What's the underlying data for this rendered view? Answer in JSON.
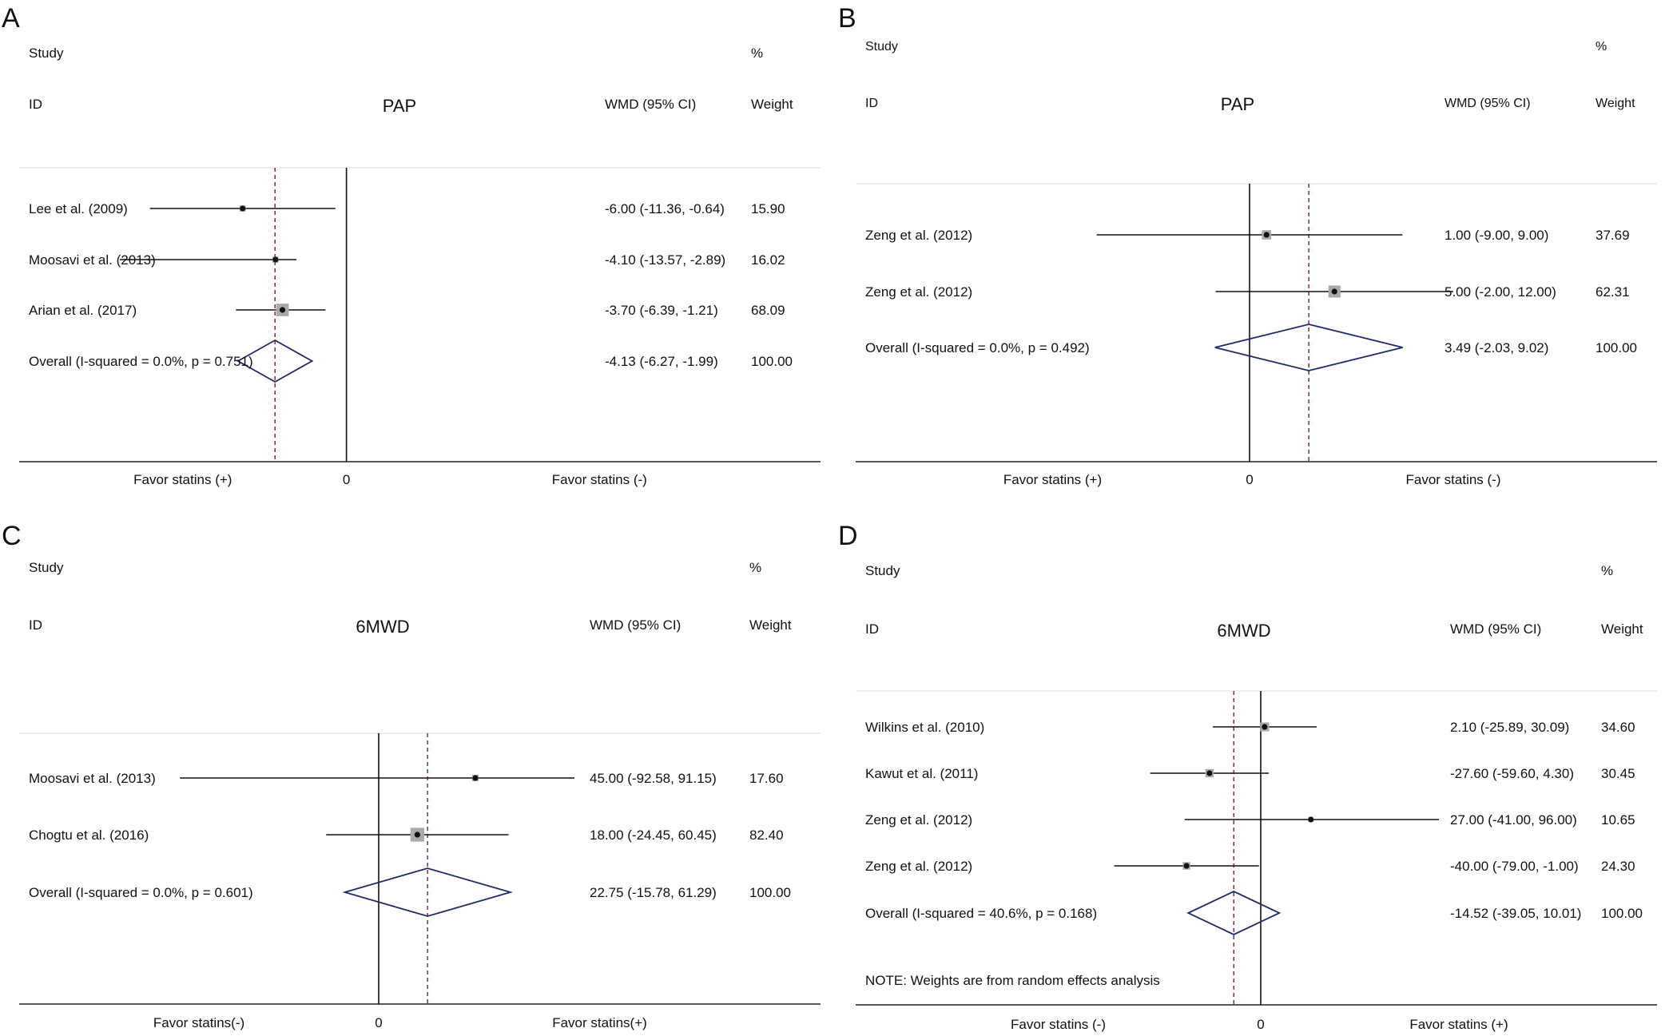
{
  "chart_data": [
    {
      "type": "forest",
      "panel_label": "A",
      "title": "PAP",
      "header": {
        "study": "Study",
        "id": "ID",
        "percent": "%",
        "effect": "WMD (95% CI)",
        "weight": "Weight"
      },
      "xlabel_left": "Favor statins (+)",
      "xlabel_right": "Favor statins (-)",
      "zero_label": "0",
      "zero_on_right": true,
      "xlim": [
        -13.1,
        7.5
      ],
      "studies": [
        {
          "name": "Lee et al. (2009)",
          "wmd": -6.0,
          "lower": -11.36,
          "upper": -0.64,
          "ci_text": "-6.00 (-11.36, -0.64)",
          "weight_text": "15.90"
        },
        {
          "name": "Moosavi et al. (2013)",
          "wmd": -4.1,
          "lower": -13.57,
          "upper": -2.89,
          "ci_text": "-4.10 (-13.57, -2.89)",
          "weight_text": "16.02"
        },
        {
          "name": "Arian et al. (2017)",
          "wmd": -3.7,
          "lower": -6.39,
          "upper": -1.21,
          "ci_text": "-3.70 (-6.39, -1.21)",
          "weight_text": "68.09"
        }
      ],
      "overall": {
        "label": "Overall  (I-squared = 0.0%, p = 0.751)",
        "wmd": -4.13,
        "lower": -6.27,
        "upper": -1.99,
        "ci_text": "-4.13 (-6.27, -1.99)",
        "weight_text": "100.00"
      },
      "note": ""
    },
    {
      "type": "forest",
      "panel_label": "B",
      "title": "PAP",
      "header": {
        "study": "Study",
        "id": "ID",
        "percent": "%",
        "effect": "WMD (95% CI)",
        "weight": "Weight"
      },
      "xlabel_left": "Favor statins (+)",
      "xlabel_right": "Favor statins (-)",
      "zero_label": "0",
      "zero_on_right": false,
      "xlim": [
        -12,
        12
      ],
      "studies": [
        {
          "name": "Zeng et al. (2012)",
          "wmd": 1.0,
          "lower": -9.0,
          "upper": 9.0,
          "ci_text": "1.00 (-9.00, 9.00)",
          "weight_text": "37.69"
        },
        {
          "name": "Zeng et al. (2012)",
          "wmd": 5.0,
          "lower": -2.0,
          "upper": 12.0,
          "ci_text": "5.00 (-2.00, 12.00)",
          "weight_text": "62.31"
        }
      ],
      "overall": {
        "label": "Overall  (I-squared = 0.0%, p = 0.492)",
        "wmd": 3.49,
        "lower": -2.03,
        "upper": 9.02,
        "ci_text": "3.49 (-2.03, 9.02)",
        "weight_text": "100.00"
      },
      "note": ""
    },
    {
      "type": "forest",
      "panel_label": "C",
      "title": "6MWD",
      "header": {
        "study": "Study",
        "id": "ID",
        "percent": "%",
        "effect": "WMD (95% CI)",
        "weight": "Weight"
      },
      "xlabel_left": "Favor statins(-)",
      "xlabel_right": "Favor statins(+)",
      "zero_label": "0",
      "zero_on_right": false,
      "xlim": [
        -93,
        93
      ],
      "studies": [
        {
          "name": "Moosavi et al. (2013)",
          "wmd": 45.0,
          "lower": -92.58,
          "upper": 91.15,
          "ci_text": "45.00 (-92.58, 91.15)",
          "weight_text": "17.60"
        },
        {
          "name": "Chogtu et al. (2016)",
          "wmd": 18.0,
          "lower": -24.45,
          "upper": 60.45,
          "ci_text": "18.00 (-24.45, 60.45)",
          "weight_text": "82.40"
        }
      ],
      "overall": {
        "label": "Overall  (I-squared = 0.0%, p = 0.601)",
        "wmd": 22.75,
        "lower": -15.78,
        "upper": 61.29,
        "ci_text": "22.75 (-15.78, 61.29)",
        "weight_text": "100.00"
      },
      "note": ""
    },
    {
      "type": "forest",
      "panel_label": "D",
      "title": "6MWD",
      "header": {
        "study": "Study",
        "id": "ID",
        "percent": "%",
        "effect": "WMD (95% CI)",
        "weight": "Weight"
      },
      "xlabel_left": "Favor statins (-)",
      "xlabel_right": "Favor statins (+)",
      "zero_label": "0",
      "zero_on_right": false,
      "xlim": [
        -96,
        96
      ],
      "studies": [
        {
          "name": "Wilkins et al. (2010)",
          "wmd": 2.1,
          "lower": -25.89,
          "upper": 30.09,
          "ci_text": "2.10 (-25.89, 30.09)",
          "weight_text": "34.60"
        },
        {
          "name": "Kawut et al. (2011)",
          "wmd": -27.6,
          "lower": -59.6,
          "upper": 4.3,
          "ci_text": "-27.60 (-59.60, 4.30)",
          "weight_text": "30.45"
        },
        {
          "name": "Zeng et al. (2012)",
          "wmd": 27.0,
          "lower": -41.0,
          "upper": 96.0,
          "ci_text": "27.00 (-41.00, 96.00)",
          "weight_text": "10.65"
        },
        {
          "name": "Zeng et al. (2012)",
          "wmd": -40.0,
          "lower": -79.0,
          "upper": -1.0,
          "ci_text": "-40.00 (-79.00, -1.00)",
          "weight_text": "24.30"
        }
      ],
      "overall": {
        "label": "Overall  (I-squared = 40.6%, p = 0.168)",
        "wmd": -14.52,
        "lower": -39.05,
        "upper": 10.01,
        "ci_text": "-14.52 (-39.05, 10.01)",
        "weight_text": "100.00"
      },
      "note": "NOTE: Weights are from random effects analysis"
    }
  ]
}
